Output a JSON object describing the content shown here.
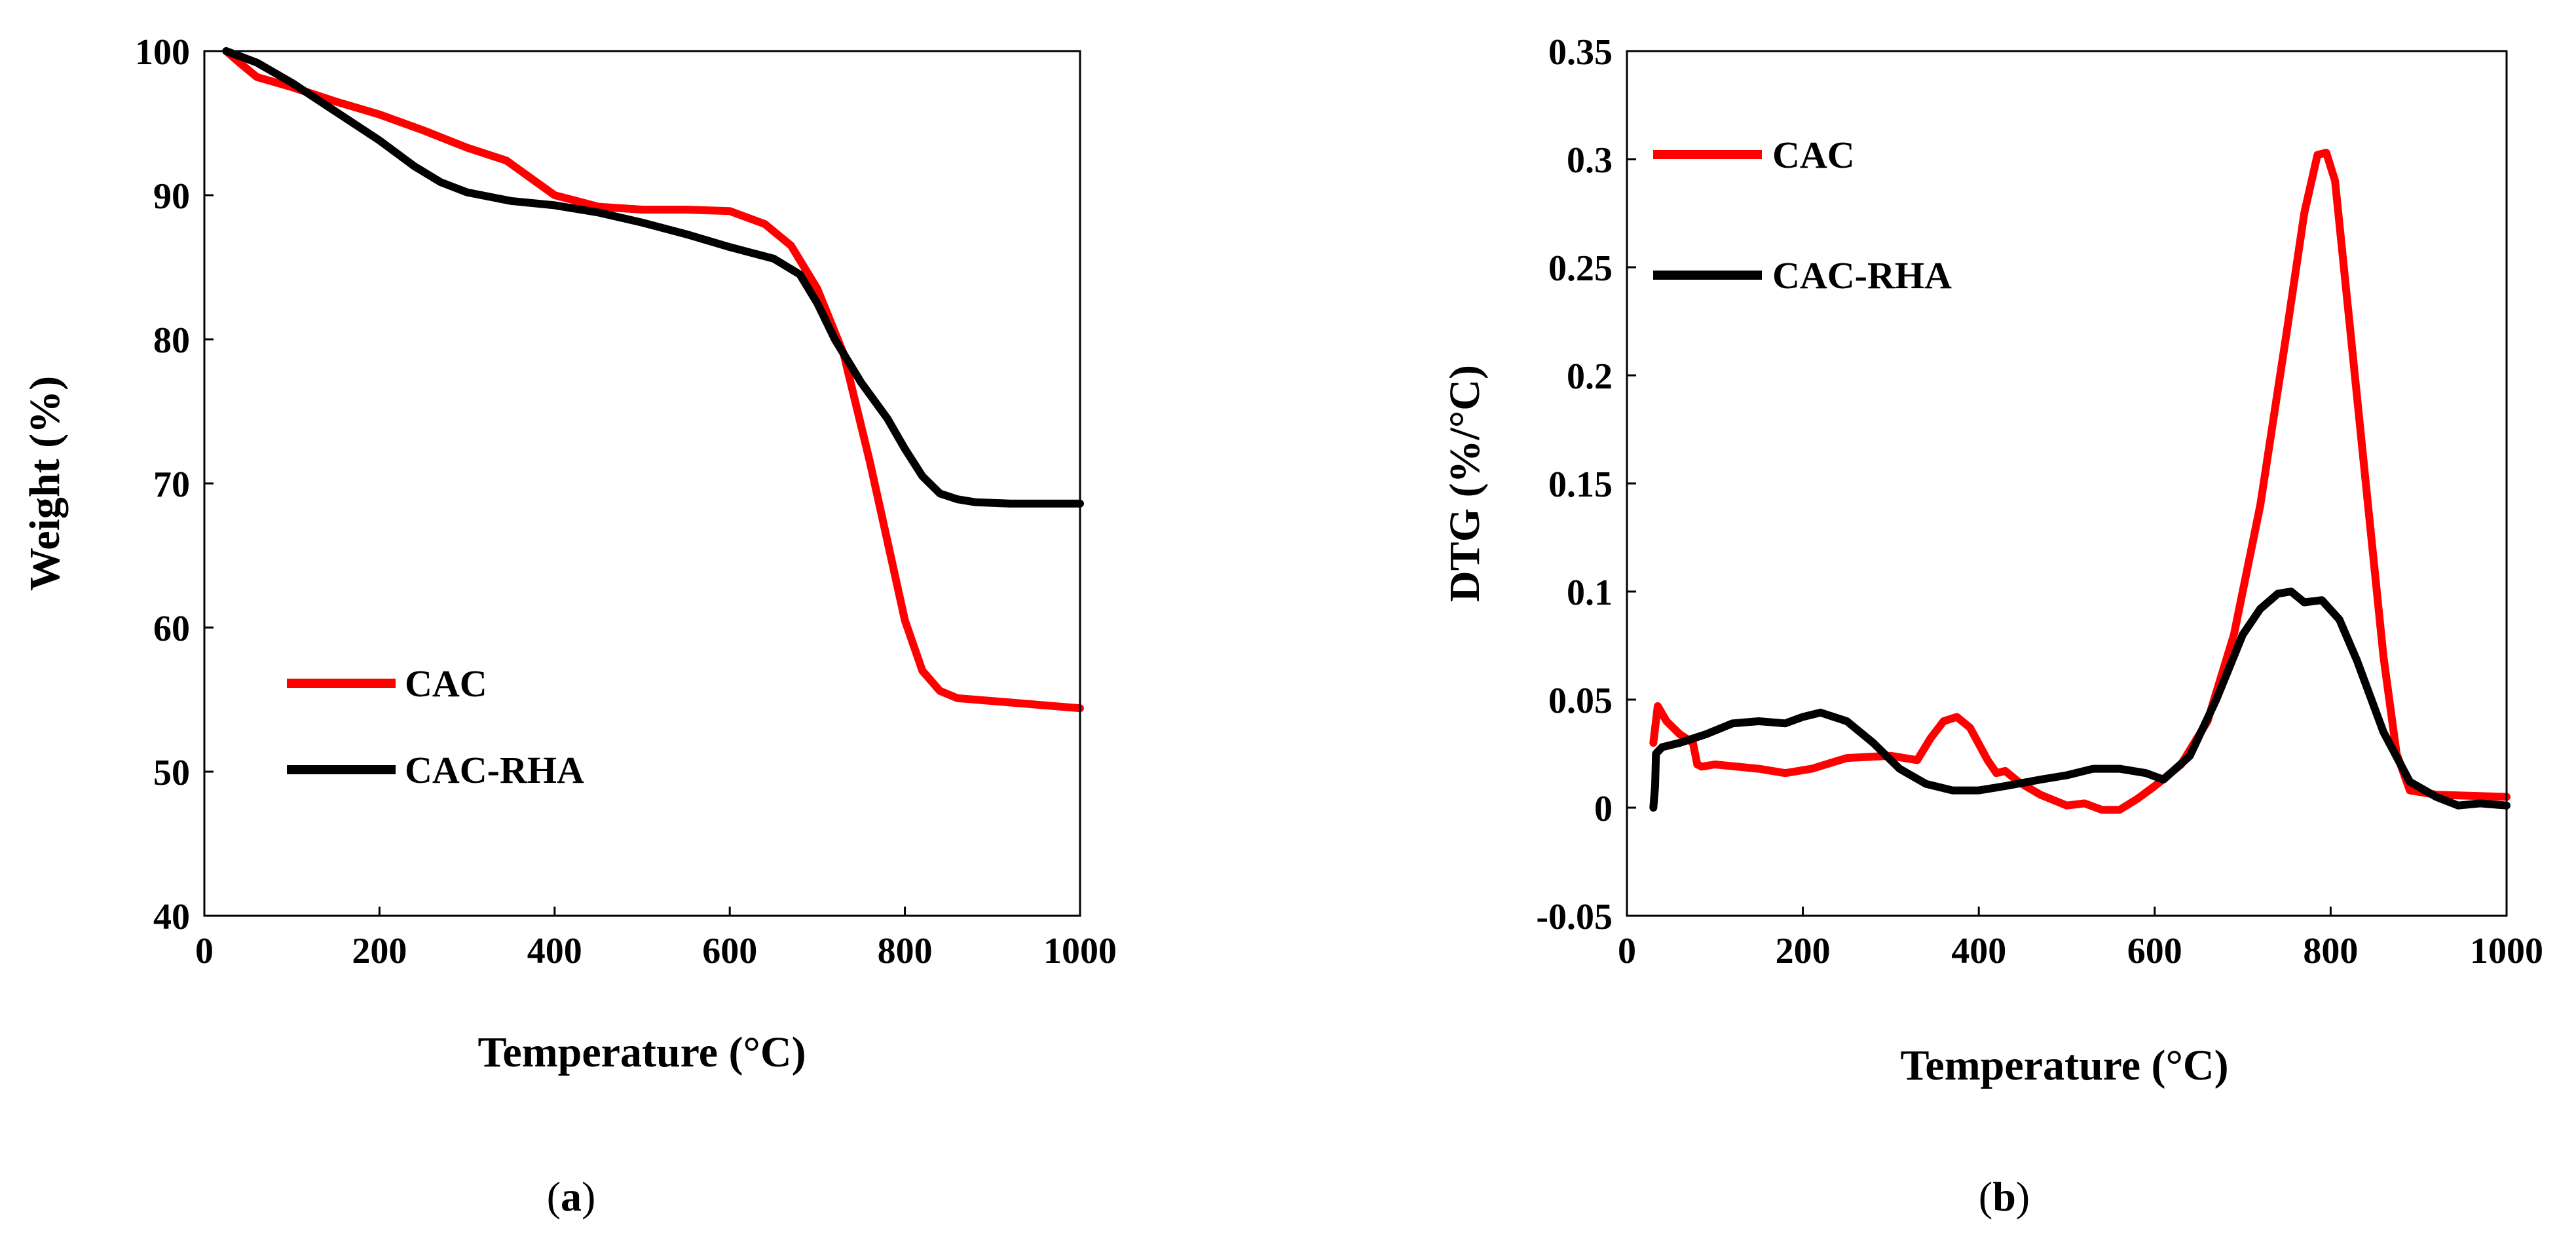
{
  "colors": {
    "CAC": "#ff0000",
    "CAC-RHA": "#000000"
  },
  "chart_data": [
    {
      "panel": "a",
      "panel_label": {
        "open": "(",
        "letter": "a",
        "close": ")"
      },
      "type": "line",
      "title": "",
      "xlabel": "Temperature (°C)",
      "ylabel": "Weight (%)",
      "xlim": [
        0,
        1000
      ],
      "ylim": [
        40,
        100
      ],
      "xticks": [
        0,
        200,
        400,
        600,
        800,
        1000
      ],
      "yticks": [
        40,
        50,
        60,
        70,
        80,
        90,
        100
      ],
      "grid": false,
      "legend_position": "bottom-left",
      "series": [
        {
          "name": "CAC",
          "color": "#ff0000",
          "x": [
            25,
            40,
            60,
            100,
            150,
            200,
            250,
            300,
            345,
            400,
            450,
            500,
            550,
            600,
            640,
            670,
            700,
            730,
            760,
            780,
            800,
            820,
            840,
            860,
            880,
            920,
            1000
          ],
          "y": [
            100,
            99.2,
            98.2,
            97.5,
            96.5,
            95.6,
            94.5,
            93.3,
            92.4,
            90.0,
            89.2,
            89.0,
            89.0,
            88.9,
            88.0,
            86.5,
            83.5,
            79.0,
            71.5,
            66.0,
            60.5,
            57.0,
            55.6,
            55.1,
            55.0,
            54.8,
            54.4
          ]
        },
        {
          "name": "CAC-RHA",
          "color": "#000000",
          "x": [
            25,
            60,
            100,
            150,
            200,
            240,
            270,
            300,
            350,
            400,
            450,
            500,
            550,
            600,
            650,
            680,
            700,
            720,
            750,
            780,
            800,
            820,
            840,
            860,
            880,
            920,
            1000
          ],
          "y": [
            100,
            99.2,
            97.8,
            95.8,
            93.8,
            92.0,
            90.9,
            90.2,
            89.6,
            89.3,
            88.8,
            88.1,
            87.3,
            86.4,
            85.6,
            84.5,
            82.5,
            80.0,
            77.0,
            74.5,
            72.4,
            70.5,
            69.3,
            68.9,
            68.7,
            68.6,
            68.6
          ]
        }
      ]
    },
    {
      "panel": "b",
      "panel_label": {
        "open": "(",
        "letter": "b",
        "close": ")"
      },
      "type": "line",
      "title": "",
      "xlabel": "Temperature (°C)",
      "ylabel": "DTG (%/°C)",
      "xlim": [
        0,
        1000
      ],
      "ylim": [
        -0.05,
        0.35
      ],
      "xticks": [
        0,
        200,
        400,
        600,
        800,
        1000
      ],
      "yticks": [
        -0.05,
        0,
        0.05,
        0.1,
        0.15,
        0.2,
        0.25,
        0.3,
        0.35
      ],
      "ytick_labels": [
        "-0.05",
        "0",
        "0.05",
        "0.1",
        "0.15",
        "0.2",
        "0.25",
        "0.3",
        "0.35"
      ],
      "grid": false,
      "legend_position": "top-left",
      "series": [
        {
          "name": "CAC",
          "color": "#ff0000",
          "x": [
            30,
            35,
            45,
            60,
            75,
            80,
            85,
            100,
            150,
            180,
            210,
            250,
            300,
            330,
            345,
            360,
            375,
            390,
            410,
            420,
            430,
            445,
            470,
            500,
            520,
            540,
            560,
            580,
            600,
            630,
            660,
            690,
            720,
            750,
            770,
            785,
            795,
            805,
            820,
            840,
            860,
            875,
            890,
            920,
            1000
          ],
          "y": [
            0.03,
            0.047,
            0.04,
            0.034,
            0.03,
            0.02,
            0.019,
            0.02,
            0.018,
            0.016,
            0.018,
            0.023,
            0.024,
            0.022,
            0.032,
            0.04,
            0.042,
            0.037,
            0.022,
            0.016,
            0.017,
            0.012,
            0.006,
            0.001,
            0.002,
            -0.001,
            -0.001,
            0.004,
            0.01,
            0.02,
            0.04,
            0.08,
            0.14,
            0.22,
            0.275,
            0.302,
            0.303,
            0.29,
            0.23,
            0.15,
            0.07,
            0.025,
            0.008,
            0.006,
            0.005
          ]
        },
        {
          "name": "CAC-RHA",
          "color": "#000000",
          "x": [
            30,
            32,
            33,
            40,
            60,
            90,
            120,
            150,
            180,
            200,
            220,
            250,
            280,
            310,
            340,
            370,
            400,
            430,
            470,
            500,
            530,
            560,
            590,
            610,
            640,
            670,
            700,
            720,
            740,
            755,
            770,
            790,
            810,
            830,
            860,
            890,
            920,
            945,
            970,
            1000
          ],
          "y": [
            0,
            0.01,
            0.025,
            0.028,
            0.03,
            0.034,
            0.039,
            0.04,
            0.039,
            0.042,
            0.044,
            0.04,
            0.03,
            0.018,
            0.011,
            0.008,
            0.008,
            0.01,
            0.013,
            0.015,
            0.018,
            0.018,
            0.016,
            0.013,
            0.024,
            0.05,
            0.08,
            0.092,
            0.099,
            0.1,
            0.095,
            0.096,
            0.087,
            0.068,
            0.035,
            0.012,
            0.005,
            0.001,
            0.002,
            0.001
          ]
        }
      ]
    }
  ]
}
